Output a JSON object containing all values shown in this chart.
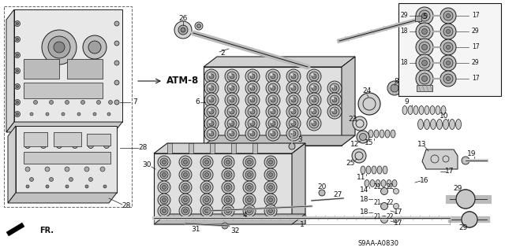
{
  "bg_color": "#ffffff",
  "line_color": "#1a1a1a",
  "gray_line": "#888888",
  "light_gray": "#cccccc",
  "mid_gray": "#999999",
  "dark_gray": "#555555",
  "diagram_code": "S9AA-A0830",
  "text_color": "#111111",
  "fs": 6.5,
  "fs_small": 5.5,
  "fs_atm": 8.5
}
